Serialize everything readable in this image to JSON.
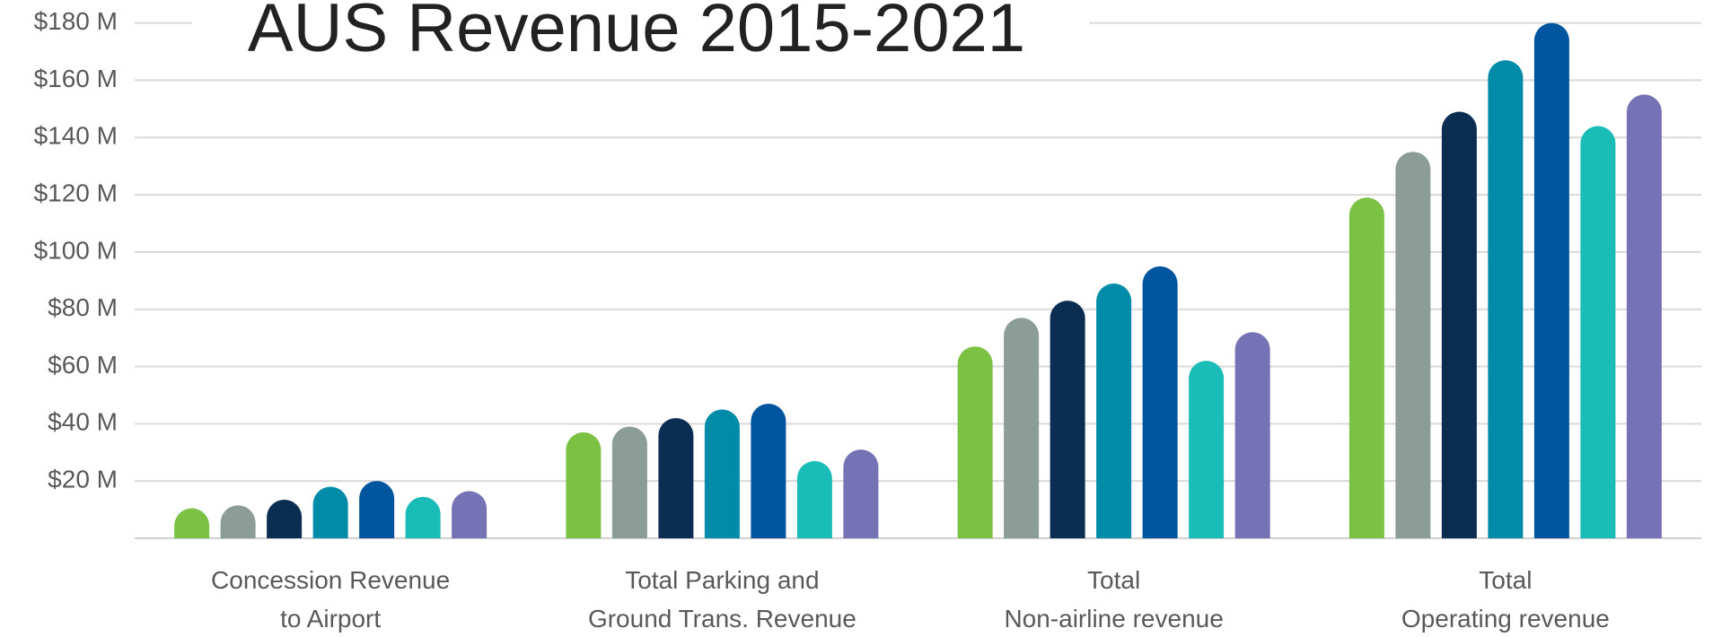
{
  "chart_data": {
    "type": "bar",
    "title": "AUS Revenue 2015-2021",
    "categories": [
      [
        "Concession Revenue",
        "to Airport"
      ],
      [
        "Total Parking  and",
        "Ground Trans. Revenue"
      ],
      [
        "Total",
        "Non-airline revenue"
      ],
      [
        "Total",
        "Operating revenue"
      ]
    ],
    "series": [
      {
        "color": "#7bc143",
        "values": [
          10.5,
          37,
          67,
          119
        ]
      },
      {
        "color": "#8c9c96",
        "values": [
          11.5,
          39,
          77,
          135
        ]
      },
      {
        "color": "#0c2d52",
        "values": [
          13.5,
          42,
          83,
          149
        ]
      },
      {
        "color": "#008ba9",
        "values": [
          18,
          45,
          89,
          167
        ]
      },
      {
        "color": "#00559f",
        "values": [
          20,
          47,
          95,
          180
        ]
      },
      {
        "color": "#19bcb6",
        "values": [
          14.5,
          27,
          62,
          144
        ]
      },
      {
        "color": "#7572b5",
        "values": [
          16.5,
          31,
          72,
          155
        ]
      }
    ],
    "ylim": [
      0,
      180
    ],
    "yticks": [
      {
        "value": 20,
        "label": "$20 M"
      },
      {
        "value": 40,
        "label": "$40 M"
      },
      {
        "value": 60,
        "label": "$60 M"
      },
      {
        "value": 80,
        "label": "$80 M"
      },
      {
        "value": 100,
        "label": "$100 M"
      },
      {
        "value": 120,
        "label": "$120 M"
      },
      {
        "value": 140,
        "label": "$140 M"
      },
      {
        "value": 160,
        "label": "$160 M"
      },
      {
        "value": 180,
        "label": "$180 M"
      }
    ],
    "grid": true
  }
}
